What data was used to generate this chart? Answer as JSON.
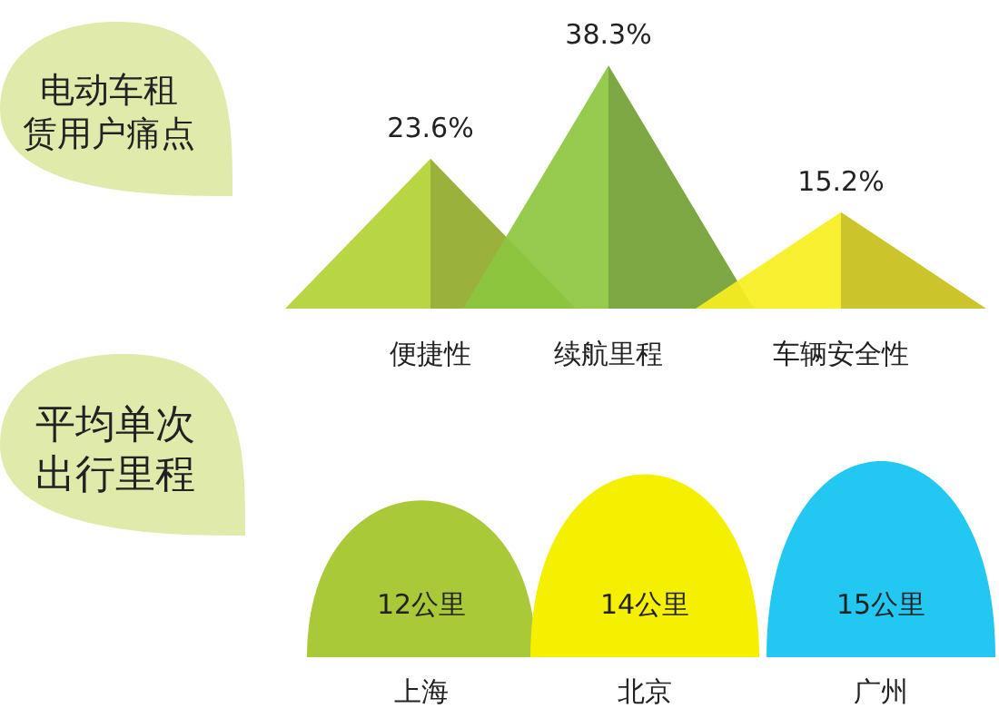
{
  "chart_data": [
    {
      "type": "other",
      "title": "电动车租赁用户痛点",
      "categories": [
        "便捷性",
        "续航里程",
        "车辆安全性"
      ],
      "values": [
        23.6,
        38.3,
        15.2
      ],
      "value_labels": [
        "23.6%",
        "38.3%",
        "15.2%"
      ],
      "colors": [
        "#b3d234",
        "#8cc63f",
        "#f7ee1f"
      ]
    },
    {
      "type": "other",
      "title": "平均单次出行里程",
      "categories": [
        "上海",
        "北京",
        "广州"
      ],
      "values": [
        12,
        14,
        15
      ],
      "value_labels": [
        "12公里",
        "14公里",
        "15公里"
      ],
      "colors": [
        "#a9c938",
        "#f5f000",
        "#22c8f2"
      ]
    }
  ]
}
